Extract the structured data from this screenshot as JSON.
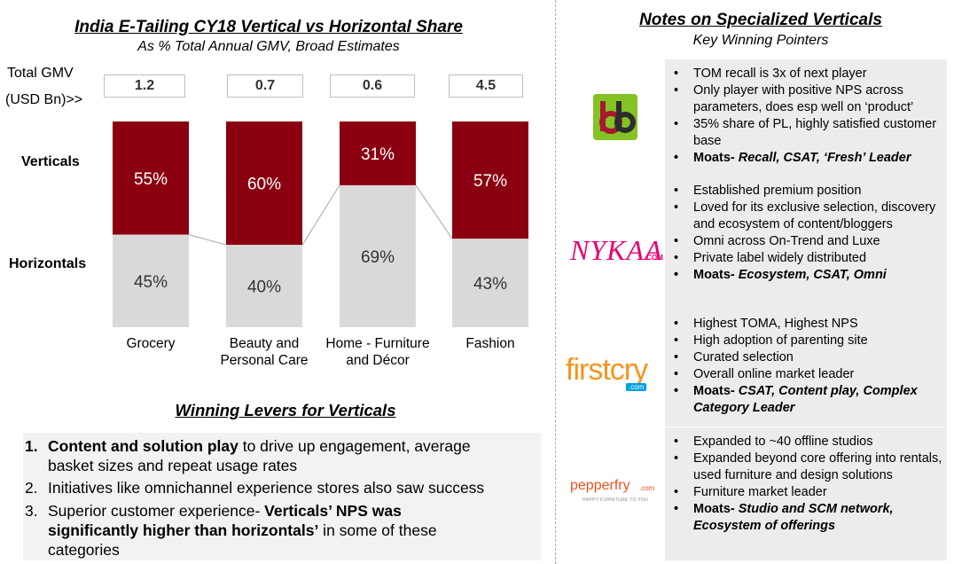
{
  "left": {
    "title": "India E-Tailing CY18 Vertical vs Horizontal Share",
    "subtitle": "As % Total Annual GMV, Broad Estimates",
    "gmv_label_1": "Total GMV",
    "gmv_label_2": "(USD Bn)>>",
    "row_label_verticals": "Verticals",
    "row_label_horizontals": "Horizontals"
  },
  "chart_data": {
    "type": "bar",
    "stacked": true,
    "percent": true,
    "categories": [
      "Grocery",
      "Beauty and Personal Care",
      "Home - Furniture and Décor",
      "Fashion"
    ],
    "category_lines": [
      [
        "Grocery"
      ],
      [
        "Beauty and",
        "Personal Care"
      ],
      [
        "Home - Furniture",
        "and Décor"
      ],
      [
        "Fashion"
      ]
    ],
    "total_gmv": [
      "1.2",
      "0.7",
      "0.6",
      "4.5"
    ],
    "series": [
      {
        "name": "Verticals",
        "values": [
          55,
          60,
          31,
          57
        ],
        "color": "#8b0010",
        "text_color": "#ffffff"
      },
      {
        "name": "Horizontals",
        "values": [
          45,
          40,
          69,
          43
        ],
        "color": "#d9d9d9",
        "text_color": "#333333"
      }
    ],
    "value_labels": {
      "Verticals": [
        "55%",
        "60%",
        "31%",
        "57%"
      ],
      "Horizontals": [
        "45%",
        "40%",
        "69%",
        "43%"
      ]
    },
    "ylim": [
      0,
      100
    ],
    "grid": false,
    "legend": "none"
  },
  "levers": {
    "title": "Winning Levers for Verticals",
    "items": [
      {
        "num": "1.",
        "bold_prefix": "Content and solution play",
        "line1_rest": " to drive up engagement, average",
        "line2": "basket sizes and repeat usage rates"
      },
      {
        "num": "2.",
        "text": "Initiatives like omnichannel experience stores also saw success"
      },
      {
        "num": "3.",
        "line1_plain": "Superior customer experience- ",
        "line1_bold": "Verticals’ NPS was",
        "line2_bold": "significantly higher than horizontals’",
        "line2_rest": " in some of these",
        "line3": "categories"
      }
    ]
  },
  "notes": {
    "title": "Notes on Specialized Verticals",
    "subtitle": "Key Winning Pointers",
    "panels": [
      {
        "logo_text": "bb",
        "logo_icon": "bigbasket-logo",
        "bullets": [
          "TOM recall is 3x of next player",
          "Only player with positive NPS across parameters, does esp well on ‘product’",
          "35% share of PL, highly satisfied customer base"
        ],
        "moat_label": "Moats-",
        "moat_text": " Recall, CSAT, ‘Fresh’ Leader"
      },
      {
        "logo_text": "NYKAA",
        "logo_suffix": ".COM",
        "logo_icon": "nykaa-logo",
        "bullets": [
          "Established premium position",
          "Loved for its exclusive selection, discovery and ecosystem of content/bloggers",
          "Omni across On-Trend and Luxe",
          "Private label widely distributed"
        ],
        "moat_label": "Moats-",
        "moat_text": " Ecosystem, CSAT, Omni"
      },
      {
        "logo_text": "firstcry",
        "logo_suffix": ".com",
        "logo_icon": "firstcry-logo",
        "bullets": [
          "Highest TOMA, Highest NPS",
          "High adoption of parenting site",
          "Curated selection",
          "Overall online market leader"
        ],
        "moat_label": "Moats-",
        "moat_text": " CSAT, Content play, Complex Category Leader"
      },
      {
        "logo_text": "pepperfry",
        "logo_suffix": ".com",
        "logo_tagline": "HAPPY FURNITURE TO YOU",
        "logo_icon": "pepperfry-logo",
        "bullets": [
          "Expanded to ~40 offline studios",
          "Expanded beyond core offering into rentals, used furniture and design solutions",
          "Furniture market leader"
        ],
        "moat_label": "Moats-",
        "moat_text": " Studio and SCM network, Ecosystem of offerings"
      }
    ]
  }
}
